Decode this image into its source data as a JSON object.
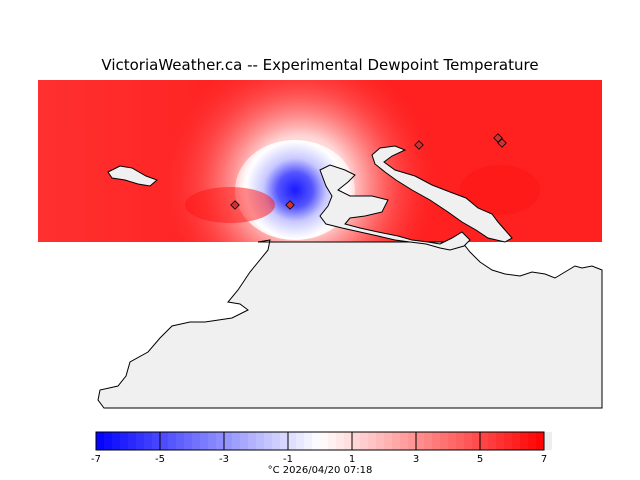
{
  "title": "VictoriaWeather.ca -- Experimental Dewpoint Temperature",
  "colorbar": {
    "ticks": [
      "-7",
      "-5",
      "-3",
      "-1",
      "1",
      "3",
      "5",
      "7"
    ],
    "range": [
      -7,
      7
    ],
    "low_color": "#0000ff",
    "mid_color": "#ffffff",
    "high_color": "#ff0000"
  },
  "caption": "°C  2026/04/20 07:18",
  "colors": {
    "land": "#f0f0f0",
    "coast": "#000000",
    "station_marker": "#cc3333"
  },
  "station_markers": [
    "marker",
    "marker",
    "marker",
    "marker",
    "marker"
  ]
}
